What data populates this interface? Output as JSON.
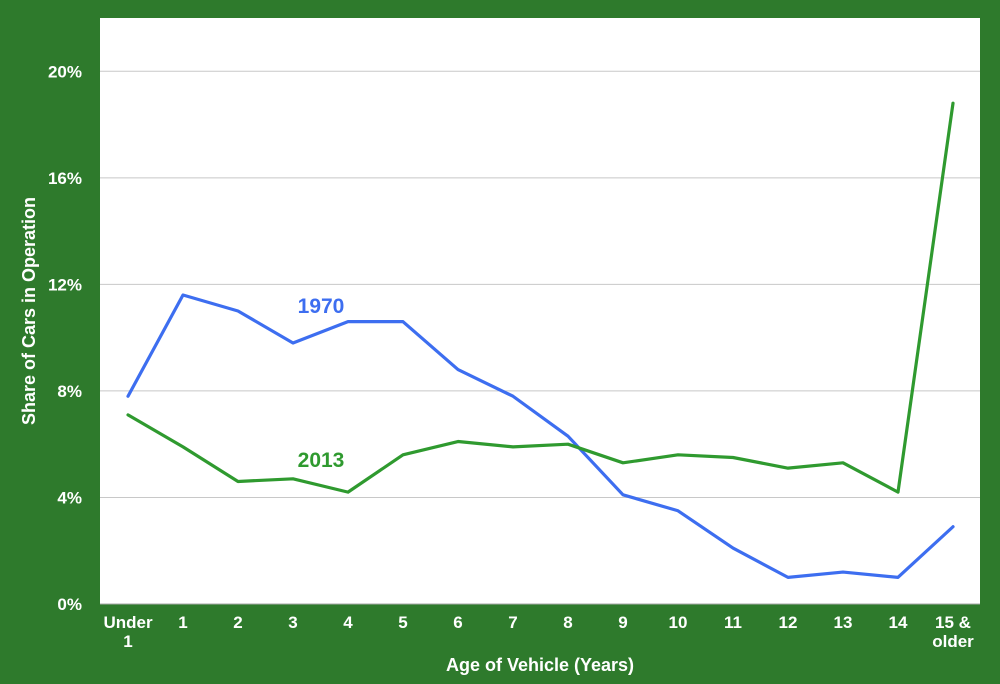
{
  "chart_data": {
    "type": "line",
    "title": "",
    "xlabel": "Age of Vehicle (Years)",
    "ylabel": "Share of Cars in Operation",
    "categories": [
      [
        "Under",
        "1"
      ],
      [
        "1"
      ],
      [
        "2"
      ],
      [
        "3"
      ],
      [
        "4"
      ],
      [
        "5"
      ],
      [
        "6"
      ],
      [
        "7"
      ],
      [
        "8"
      ],
      [
        "9"
      ],
      [
        "10"
      ],
      [
        "11"
      ],
      [
        "12"
      ],
      [
        "13"
      ],
      [
        "14"
      ],
      [
        "15 &",
        "older"
      ]
    ],
    "ylim": [
      0,
      22
    ],
    "yticks": [
      0,
      4,
      8,
      12,
      16,
      20
    ],
    "ytick_labels": [
      "0%",
      "4%",
      "8%",
      "12%",
      "16%",
      "20%"
    ],
    "grid": true,
    "legend": "none",
    "series": [
      {
        "name": "1970",
        "color": "#3d6ef0",
        "values": [
          7.8,
          11.6,
          11.0,
          9.8,
          10.6,
          10.6,
          8.8,
          7.8,
          6.3,
          4.1,
          3.5,
          2.1,
          1.0,
          1.2,
          1.0,
          2.9
        ]
      },
      {
        "name": "2013",
        "color": "#2f9a2f",
        "values": [
          7.1,
          5.9,
          4.6,
          4.7,
          4.2,
          5.6,
          6.1,
          5.9,
          6.0,
          5.3,
          5.6,
          5.5,
          5.1,
          5.3,
          4.2,
          18.8
        ]
      }
    ]
  }
}
